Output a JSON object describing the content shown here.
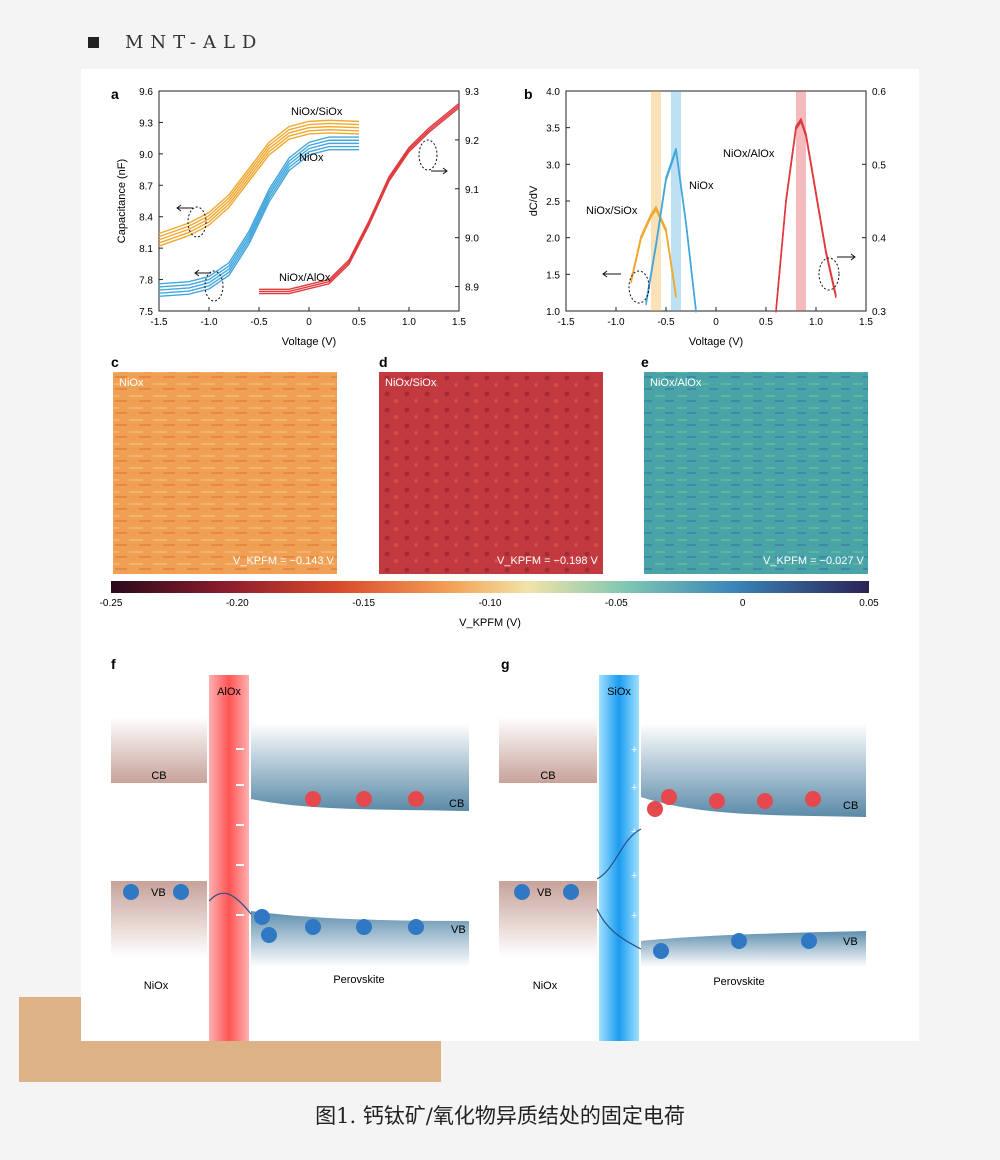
{
  "header": {
    "brand": "MNT-ALD"
  },
  "caption": "图1. 钙钛矿/氧化物异质结处的固定电荷",
  "panels": {
    "a": {
      "label": "a",
      "ylabel": "Capacitance (nF)",
      "xlabel": "Voltage (V)",
      "lbl_nio_sio": "NiOx/SiOx",
      "lbl_nio": "NiOx",
      "lbl_nio_alo": "NiOx/AlOx"
    },
    "b": {
      "label": "b",
      "ylabel": "dC/dV",
      "xlabel": "Voltage (V)",
      "lbl_nio_sio": "NiOx/SiOx",
      "lbl_nio": "NiOx",
      "lbl_nio_alo": "NiOx/AlOx"
    },
    "c": {
      "label": "c",
      "title": "NiOx",
      "value": "V_KPFM = −0.143 V"
    },
    "d": {
      "label": "d",
      "title": "NiOx/SiOx",
      "value": "V_KPFM = −0.198 V"
    },
    "e": {
      "label": "e",
      "title": "NiOx/AlOx",
      "value": "V_KPFM = −0.027 V"
    },
    "f": {
      "label": "f",
      "oxide": "AlOx",
      "cb": "CB",
      "vb": "VB",
      "left": "NiOx",
      "right": "Perovskite"
    },
    "g": {
      "label": "g",
      "oxide": "SiOx",
      "cb": "CB",
      "vb": "VB",
      "left": "NiOx",
      "right": "Perovskite"
    }
  },
  "colorbar": {
    "ticks": [
      "-0.25",
      "-0.20",
      "-0.15",
      "-0.10",
      "-0.05",
      "0",
      "0.05"
    ],
    "label": "V_KPFM (V)"
  },
  "chart_data": [
    {
      "type": "line",
      "id": "a",
      "title": "",
      "xlabel": "Voltage (V)",
      "ylabel": "Capacitance (nF)",
      "xlim": [
        -1.5,
        1.5
      ],
      "ylim": [
        7.5,
        9.6
      ],
      "x_ticks": [
        "-1.5",
        "-1.0",
        "-0.5",
        "0",
        "0.5",
        "1.0",
        "1.5"
      ],
      "y_ticks": [
        "7.5",
        "7.8",
        "8.1",
        "8.4",
        "8.7",
        "9.0",
        "9.3",
        "9.6"
      ],
      "y2_ticks": [
        "8.9",
        "9.0",
        "9.1",
        "9.2",
        "9.3"
      ],
      "y2lim": [
        8.85,
        9.3
      ],
      "series": [
        {
          "name": "NiOx/SiOx",
          "color": "#f0a830",
          "x": [
            -1.5,
            -1.2,
            -1.0,
            -0.8,
            -0.6,
            -0.4,
            -0.2,
            0,
            0.2,
            0.5
          ],
          "y": [
            8.18,
            8.28,
            8.38,
            8.55,
            8.8,
            9.05,
            9.2,
            9.25,
            9.26,
            9.25
          ]
        },
        {
          "name": "NiOx",
          "color": "#45a7dc",
          "x": [
            -1.5,
            -1.2,
            -1.0,
            -0.8,
            -0.6,
            -0.4,
            -0.2,
            0,
            0.2,
            0.5
          ],
          "y": [
            7.7,
            7.72,
            7.77,
            7.9,
            8.2,
            8.6,
            8.9,
            9.05,
            9.1,
            9.1
          ]
        },
        {
          "name": "NiOx/AlOx",
          "color": "#e0393e",
          "axis": "right",
          "x": [
            -0.5,
            -0.2,
            0,
            0.2,
            0.4,
            0.6,
            0.8,
            1.0,
            1.2,
            1.5
          ],
          "y": [
            8.89,
            8.89,
            8.9,
            8.91,
            8.95,
            9.03,
            9.12,
            9.18,
            9.22,
            9.27
          ]
        }
      ]
    },
    {
      "type": "line",
      "id": "b",
      "title": "",
      "xlabel": "Voltage (V)",
      "ylabel": "dC/dV",
      "xlim": [
        -1.5,
        1.5
      ],
      "ylim": [
        1.0,
        4.0
      ],
      "x_ticks": [
        "-1.5",
        "-1.0",
        "-0.5",
        "0",
        "0.5",
        "1.0",
        "1.5"
      ],
      "y_ticks": [
        "1.0",
        "1.5",
        "2.0",
        "2.5",
        "3.0",
        "3.5",
        "4.0"
      ],
      "y2_ticks": [
        "0.3",
        "0.4",
        "0.5",
        "0.6"
      ],
      "y2lim": [
        0.3,
        0.6
      ],
      "series": [
        {
          "name": "NiOx/SiOx",
          "color": "#f0a830",
          "peak": -0.6,
          "x": [
            -0.85,
            -0.75,
            -0.65,
            -0.6,
            -0.5,
            -0.4
          ],
          "y": [
            1.4,
            2.0,
            2.3,
            2.4,
            2.1,
            1.2
          ]
        },
        {
          "name": "NiOx",
          "color": "#45a7dc",
          "peak": -0.4,
          "x": [
            -0.7,
            -0.6,
            -0.5,
            -0.4,
            -0.3,
            -0.2
          ],
          "y": [
            1.1,
            1.9,
            2.8,
            3.2,
            2.2,
            1.0
          ]
        },
        {
          "name": "NiOx/AlOx",
          "color": "#e0393e",
          "axis": "right",
          "peak": 0.85,
          "x": [
            0.6,
            0.7,
            0.8,
            0.85,
            0.9,
            1.0,
            1.1,
            1.2
          ],
          "y": [
            0.3,
            0.45,
            0.55,
            0.56,
            0.54,
            0.46,
            0.38,
            0.32
          ]
        }
      ]
    }
  ]
}
